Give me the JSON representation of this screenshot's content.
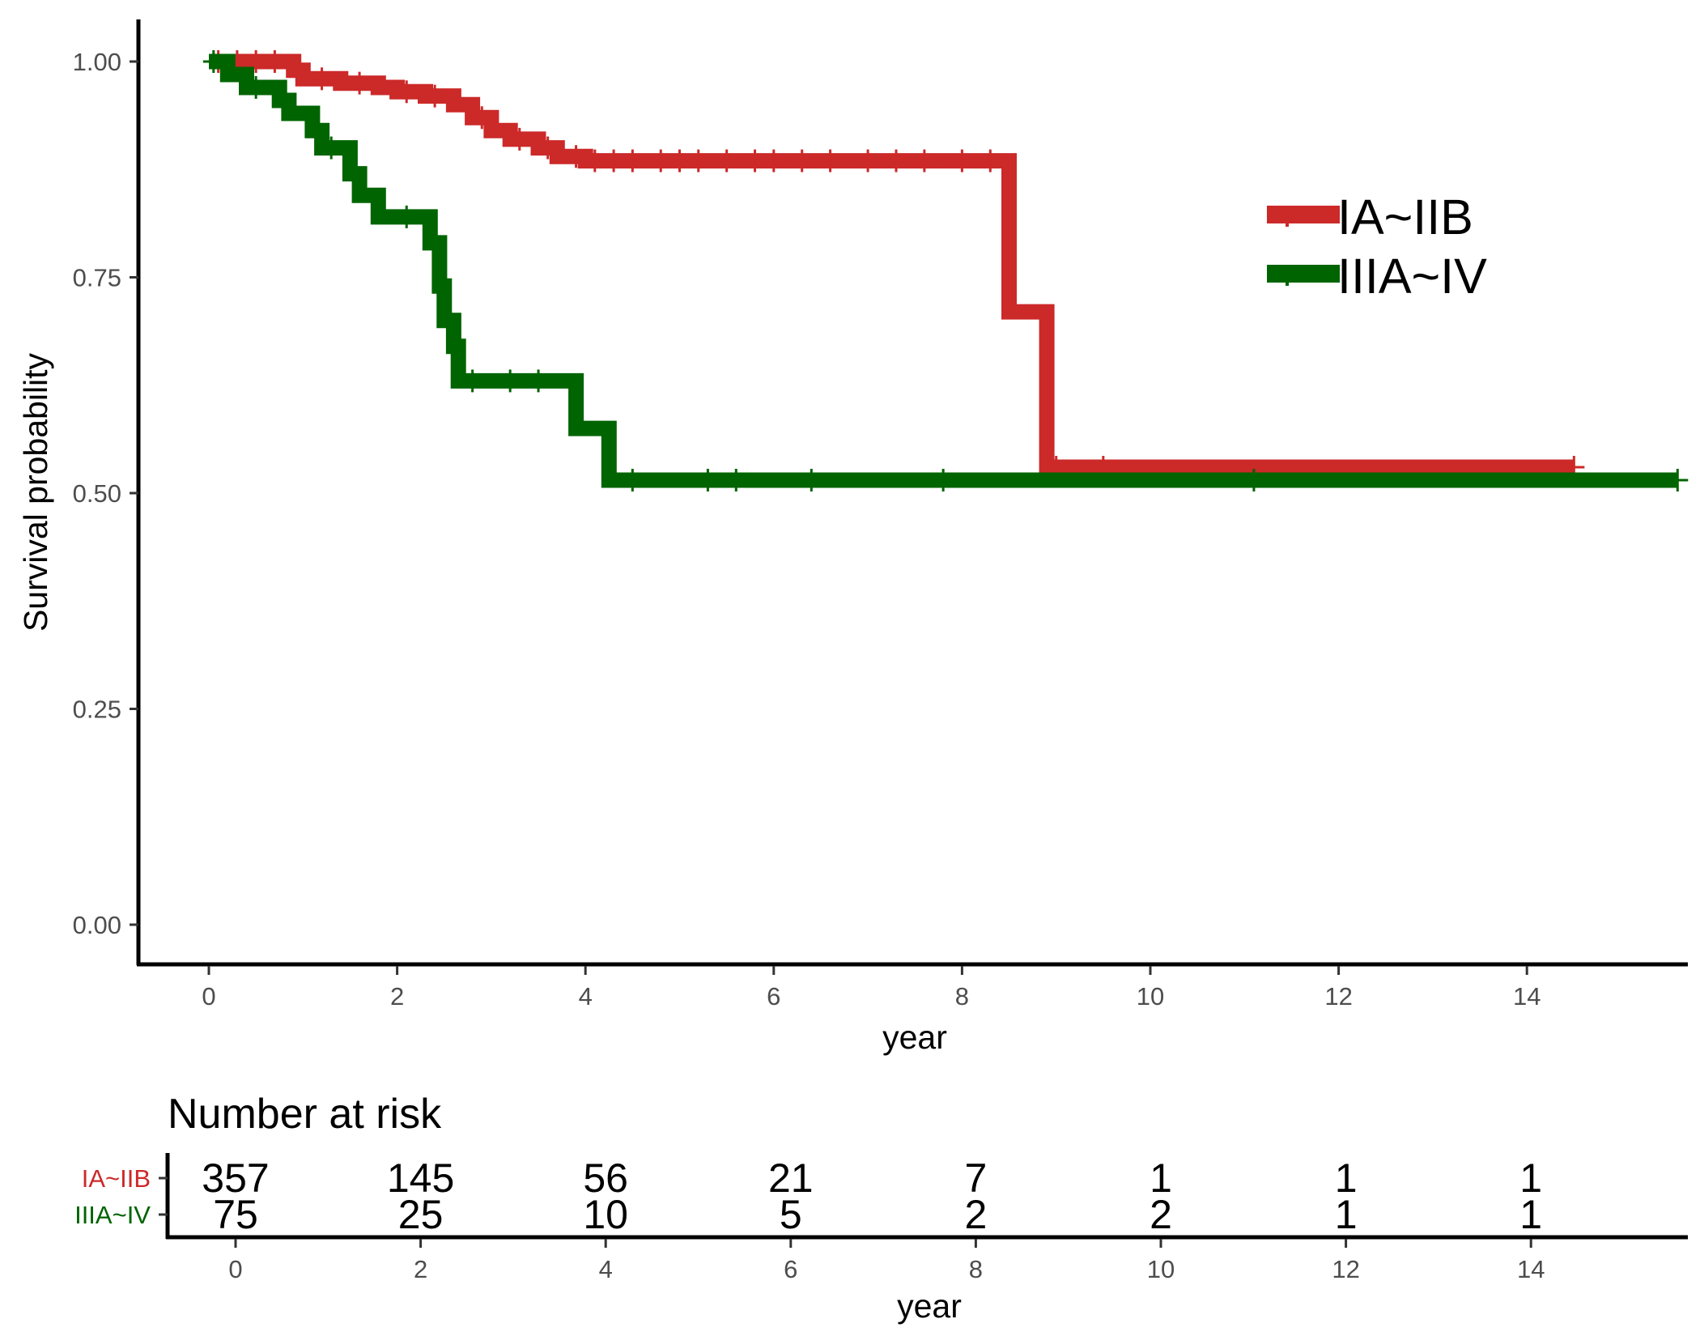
{
  "chart_data": [
    {
      "type": "line",
      "subtype": "kaplan-meier step",
      "title": "",
      "xlabel": "year",
      "ylabel": "Survival probability",
      "xlim": [
        -0.75,
        15.75
      ],
      "ylim": [
        -0.05,
        1.05
      ],
      "x_ticks": [
        0,
        2,
        4,
        6,
        8,
        10,
        12,
        14
      ],
      "x_tick_labels": [
        "0",
        "2",
        "4",
        "6",
        "8",
        "10",
        "12",
        "14"
      ],
      "y_ticks": [
        0,
        0.25,
        0.5,
        0.75,
        1.0
      ],
      "y_tick_labels": [
        "0.00",
        "0.25",
        "0.50",
        "0.75",
        "1.00"
      ],
      "grid": false,
      "legend": {
        "position": "top-right"
      },
      "series": [
        {
          "name": "IA~IIB",
          "color": "#cc2929",
          "steps": [
            [
              0,
              1.0
            ],
            [
              0.9,
              0.99
            ],
            [
              1.0,
              0.98
            ],
            [
              1.4,
              0.975
            ],
            [
              1.8,
              0.97
            ],
            [
              2.0,
              0.965
            ],
            [
              2.3,
              0.96
            ],
            [
              2.6,
              0.95
            ],
            [
              2.8,
              0.935
            ],
            [
              3.0,
              0.92
            ],
            [
              3.2,
              0.91
            ],
            [
              3.5,
              0.9
            ],
            [
              3.7,
              0.89
            ],
            [
              4.0,
              0.885
            ],
            [
              8.5,
              0.71
            ],
            [
              8.9,
              0.53
            ],
            [
              14.5,
              0.53
            ]
          ],
          "censor_x": [
            0.1,
            0.3,
            0.5,
            0.7,
            1.2,
            1.6,
            2.1,
            2.4,
            2.9,
            3.3,
            3.6,
            3.9,
            4.1,
            4.3,
            4.5,
            4.8,
            5.0,
            5.2,
            5.5,
            5.8,
            6.0,
            6.3,
            6.6,
            7.0,
            7.3,
            7.6,
            8.0,
            8.3,
            9.0,
            9.5,
            14.5
          ]
        },
        {
          "name": "IIIA~IV",
          "color": "#006400",
          "steps": [
            [
              0,
              1.0
            ],
            [
              0.2,
              0.985
            ],
            [
              0.4,
              0.97
            ],
            [
              0.75,
              0.955
            ],
            [
              0.85,
              0.94
            ],
            [
              1.1,
              0.92
            ],
            [
              1.2,
              0.9
            ],
            [
              1.5,
              0.87
            ],
            [
              1.6,
              0.845
            ],
            [
              1.8,
              0.82
            ],
            [
              2.35,
              0.79
            ],
            [
              2.45,
              0.74
            ],
            [
              2.5,
              0.7
            ],
            [
              2.6,
              0.67
            ],
            [
              2.65,
              0.63
            ],
            [
              3.9,
              0.575
            ],
            [
              4.25,
              0.515
            ],
            [
              15.6,
              0.515
            ]
          ],
          "censor_x": [
            0.05,
            0.5,
            1.3,
            2.1,
            2.8,
            3.2,
            3.5,
            4.5,
            5.3,
            5.6,
            6.4,
            7.8,
            11.1,
            15.6
          ]
        }
      ]
    },
    {
      "type": "table",
      "title": "Number at risk",
      "xlabel": "year",
      "x_ticks": [
        0,
        2,
        4,
        6,
        8,
        10,
        12,
        14
      ],
      "x_tick_labels": [
        "0",
        "2",
        "4",
        "6",
        "8",
        "10",
        "12",
        "14"
      ],
      "rows": [
        {
          "name": "IA~IIB",
          "color": "#cc2929",
          "values": [
            357,
            145,
            56,
            21,
            7,
            1,
            1,
            1
          ]
        },
        {
          "name": "IIIA~IV",
          "color": "#006400",
          "values": [
            75,
            25,
            10,
            5,
            2,
            2,
            1,
            1
          ]
        }
      ]
    }
  ]
}
